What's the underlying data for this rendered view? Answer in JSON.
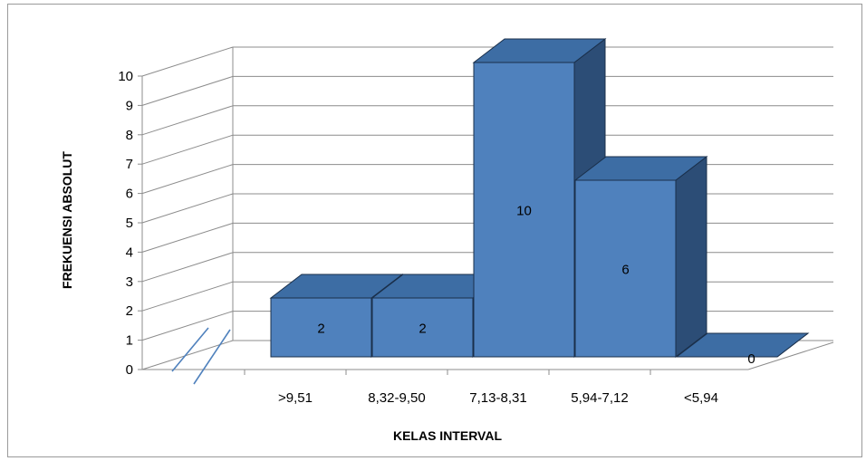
{
  "chart_data": {
    "type": "bar",
    "title": "",
    "xlabel": "KELAS INTERVAL",
    "ylabel": "FREKUENSI ABSOLUT",
    "categories": [
      ">9,51",
      "8,32-9,50",
      "7,13-8,31",
      "5,94-7,12",
      "<5,94"
    ],
    "values": [
      2,
      2,
      10,
      6,
      0
    ],
    "ylim": [
      0,
      10
    ],
    "yticks": [
      "0",
      "1",
      "2",
      "3",
      "4",
      "5",
      "6",
      "7",
      "8",
      "9",
      "10"
    ],
    "grid": true,
    "legend": "none",
    "style": "3d-column",
    "colors": {
      "front": "#4f81bd",
      "top": "#3d6da4",
      "side": "#2c4d76",
      "edge": "#1a2f4a",
      "grid": "#8c8c8c",
      "break_mark": "#4f81bd"
    }
  }
}
